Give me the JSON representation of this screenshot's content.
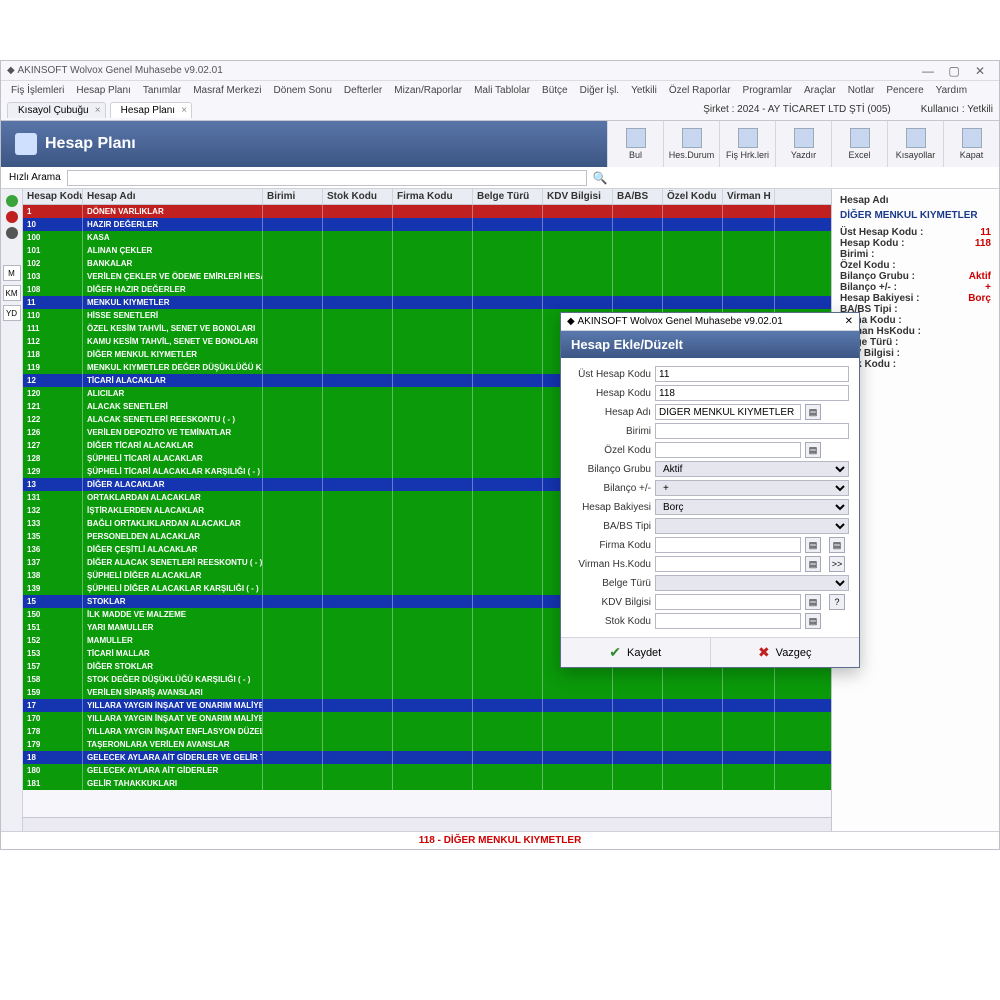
{
  "window": {
    "title": "AKINSOFT Wolvox Genel Muhasebe v9.02.01"
  },
  "menu": [
    "Fiş İşlemleri",
    "Hesap Planı",
    "Tanımlar",
    "Masraf Merkezi",
    "Dönem Sonu",
    "Defterler",
    "Mizan/Raporlar",
    "Mali Tablolar",
    "Bütçe",
    "Diğer İşl.",
    "Yetkili",
    "Özel Raporlar",
    "Programlar",
    "Araçlar",
    "Notlar",
    "Pencere",
    "Yardım"
  ],
  "tabs": [
    {
      "label": "Kısayol Çubuğu"
    },
    {
      "label": "Hesap Planı"
    }
  ],
  "topright": {
    "company": "Şirket : 2024 - AY TİCARET LTD ŞTİ (005)",
    "user": "Kullanıcı : Yetkili"
  },
  "ribbon": {
    "title": "Hesap Planı",
    "buttons": [
      "Bul",
      "Hes.Durum",
      "Fiş Hrk.leri",
      "Yazdır",
      "Excel",
      "Kısayollar",
      "Kapat"
    ]
  },
  "search": {
    "label": "Hızlı Arama",
    "value": ""
  },
  "left_gutter": {
    "dots": [
      "#3aa33a",
      "#c02020",
      "#555"
    ],
    "buttons": [
      "M",
      "KM",
      "YD"
    ]
  },
  "columns": [
    "Hesap Kodu",
    "Hesap Adı",
    "Birimi",
    "Stok Kodu",
    "Firma Kodu",
    "Belge Türü",
    "KDV Bilgisi",
    "BA/BS",
    "Özel Kodu",
    "Virman H"
  ],
  "row_colors": {
    "r": "#c02020",
    "b": "#1434b0",
    "g": "#0a9a0a"
  },
  "rows": [
    {
      "c": "r",
      "code": "1",
      "name": "DÖNEN VARLIKLAR"
    },
    {
      "c": "b",
      "code": "10",
      "name": "HAZIR DEĞERLER"
    },
    {
      "c": "g",
      "code": "100",
      "name": "KASA"
    },
    {
      "c": "g",
      "code": "101",
      "name": "ALINAN ÇEKLER"
    },
    {
      "c": "g",
      "code": "102",
      "name": "BANKALAR"
    },
    {
      "c": "g",
      "code": "103",
      "name": "VERİLEN ÇEKLER VE ÖDEME EMİRLERİ HESABI ( - )"
    },
    {
      "c": "g",
      "code": "108",
      "name": "DİĞER HAZIR DEĞERLER"
    },
    {
      "c": "b",
      "code": "11",
      "name": "MENKUL KIYMETLER"
    },
    {
      "c": "g",
      "code": "110",
      "name": "HİSSE SENETLERİ"
    },
    {
      "c": "g",
      "code": "111",
      "name": "ÖZEL KESİM TAHVİL, SENET VE BONOLARI"
    },
    {
      "c": "g",
      "code": "112",
      "name": "KAMU KESİM TAHVİL, SENET VE BONOLARI"
    },
    {
      "c": "g",
      "code": "118",
      "name": "DİĞER MENKUL KIYMETLER"
    },
    {
      "c": "g",
      "code": "119",
      "name": "MENKUL KIYMETLER DEĞER DÜŞÜKLÜĞÜ KARŞILIĞI ( - )"
    },
    {
      "c": "b",
      "code": "12",
      "name": "TİCARİ ALACAKLAR"
    },
    {
      "c": "g",
      "code": "120",
      "name": "ALICILAR"
    },
    {
      "c": "g",
      "code": "121",
      "name": "ALACAK SENETLERİ"
    },
    {
      "c": "g",
      "code": "122",
      "name": "ALACAK SENETLERİ REESKONTU ( - )"
    },
    {
      "c": "g",
      "code": "126",
      "name": "VERİLEN DEPOZİTO VE TEMİNATLAR"
    },
    {
      "c": "g",
      "code": "127",
      "name": "DİĞER TİCARİ ALACAKLAR"
    },
    {
      "c": "g",
      "code": "128",
      "name": "ŞÜPHELİ TİCARİ ALACAKLAR"
    },
    {
      "c": "g",
      "code": "129",
      "name": "ŞÜPHELİ TİCARİ ALACAKLAR KARŞILIĞI ( - )"
    },
    {
      "c": "b",
      "code": "13",
      "name": "DİĞER ALACAKLAR"
    },
    {
      "c": "g",
      "code": "131",
      "name": "ORTAKLARDAN ALACAKLAR"
    },
    {
      "c": "g",
      "code": "132",
      "name": "İŞTİRAKLERDEN ALACAKLAR"
    },
    {
      "c": "g",
      "code": "133",
      "name": "BAĞLI ORTAKLIKLARDAN ALACAKLAR"
    },
    {
      "c": "g",
      "code": "135",
      "name": "PERSONELDEN ALACAKLAR"
    },
    {
      "c": "g",
      "code": "136",
      "name": "DİĞER ÇEŞİTLİ ALACAKLAR"
    },
    {
      "c": "g",
      "code": "137",
      "name": "DİĞER ALACAK SENETLERİ REESKONTU ( - )"
    },
    {
      "c": "g",
      "code": "138",
      "name": "ŞÜPHELİ DİĞER ALACAKLAR"
    },
    {
      "c": "g",
      "code": "139",
      "name": "ŞÜPHELİ DİĞER ALACAKLAR KARŞILIĞI ( - )"
    },
    {
      "c": "b",
      "code": "15",
      "name": "STOKLAR"
    },
    {
      "c": "g",
      "code": "150",
      "name": "İLK MADDE VE MALZEME"
    },
    {
      "c": "g",
      "code": "151",
      "name": "YARI MAMULLER"
    },
    {
      "c": "g",
      "code": "152",
      "name": "MAMULLER"
    },
    {
      "c": "g",
      "code": "153",
      "name": "TİCARİ MALLAR"
    },
    {
      "c": "g",
      "code": "157",
      "name": "DİĞER STOKLAR"
    },
    {
      "c": "g",
      "code": "158",
      "name": "STOK DEĞER DÜŞÜKLÜĞÜ KARŞILIĞI ( - )"
    },
    {
      "c": "g",
      "code": "159",
      "name": "VERİLEN SİPARİŞ AVANSLARI"
    },
    {
      "c": "b",
      "code": "17",
      "name": "YILLARA YAYGIN İNŞAAT VE ONARIM MALİYETLERİ"
    },
    {
      "c": "g",
      "code": "170",
      "name": "YILLARA YAYGIN İNŞAAT VE ONARIM MALİYETLERİ"
    },
    {
      "c": "g",
      "code": "178",
      "name": "YILLARA YAYGIN İNŞAAT ENFLASYON DÜZELTME HESABI"
    },
    {
      "c": "g",
      "code": "179",
      "name": "TAŞERONLARA VERİLEN AVANSLAR"
    },
    {
      "c": "b",
      "code": "18",
      "name": "GELECEK AYLARA AİT GİDERLER VE GELİR TAHAKKUKLARI"
    },
    {
      "c": "g",
      "code": "180",
      "name": "GELECEK AYLARA AİT GİDERLER"
    },
    {
      "c": "g",
      "code": "181",
      "name": "GELİR TAHAKKUKLARI"
    }
  ],
  "side": {
    "label_header": "Hesap Adı",
    "header": "DİĞER MENKUL KIYMETLER",
    "items": [
      {
        "k": "Üst Hesap Kodu :",
        "v": "11",
        "red": true
      },
      {
        "k": "Hesap Kodu :",
        "v": "118",
        "red": true
      },
      {
        "k": "Birimi :",
        "v": ""
      },
      {
        "k": "Özel Kodu :",
        "v": ""
      },
      {
        "k": "Bilanço Grubu :",
        "v": "Aktif",
        "red": true
      },
      {
        "k": "Bilanço +/- :",
        "v": "+",
        "red": true
      },
      {
        "k": "Hesap Bakiyesi :",
        "v": "Borç",
        "red": true
      },
      {
        "k": "BA/BS Tipi :",
        "v": ""
      },
      {
        "k": "Firma Kodu :",
        "v": ""
      },
      {
        "k": "Virman HsKodu :",
        "v": ""
      },
      {
        "k": "Belge Türü :",
        "v": ""
      },
      {
        "k": "KDV Bilgisi :",
        "v": ""
      },
      {
        "k": "Stok Kodu :",
        "v": ""
      }
    ]
  },
  "status": "118 - DİĞER MENKUL KIYMETLER",
  "modal": {
    "app": "AKINSOFT Wolvox Genel Muhasebe v9.02.01",
    "title": "Hesap Ekle/Düzelt",
    "fields": [
      {
        "label": "Üst Hesap Kodu",
        "type": "text",
        "value": "11"
      },
      {
        "label": "Hesap Kodu",
        "type": "text",
        "value": "118"
      },
      {
        "label": "Hesap Adı",
        "type": "text",
        "value": "DİĞER MENKUL KIYMETLER",
        "end": "doc"
      },
      {
        "label": "Birimi",
        "type": "text",
        "value": ""
      },
      {
        "label": "Özel Kodu",
        "type": "text",
        "value": "",
        "end": "doc"
      },
      {
        "label": "Bilanço Grubu",
        "type": "select",
        "value": "Aktif"
      },
      {
        "label": "Bilanço +/-",
        "type": "select",
        "value": "+"
      },
      {
        "label": "Hesap Bakiyesi",
        "type": "select",
        "value": "Borç"
      },
      {
        "label": "BA/BS Tipi",
        "type": "select",
        "value": ""
      },
      {
        "label": "Firma Kodu",
        "type": "text",
        "value": "",
        "end": "doc",
        "extra": "doc"
      },
      {
        "label": "Virman Hs.Kodu",
        "type": "text",
        "value": "",
        "end": "doc",
        "extra": "arrow"
      },
      {
        "label": "Belge Türü",
        "type": "select",
        "value": ""
      },
      {
        "label": "KDV Bilgisi",
        "type": "text",
        "value": "",
        "end": "doc",
        "extra": "q"
      },
      {
        "label": "Stok Kodu",
        "type": "text",
        "value": "",
        "end": "doc"
      }
    ],
    "save": "Kaydet",
    "cancel": "Vazgeç"
  }
}
